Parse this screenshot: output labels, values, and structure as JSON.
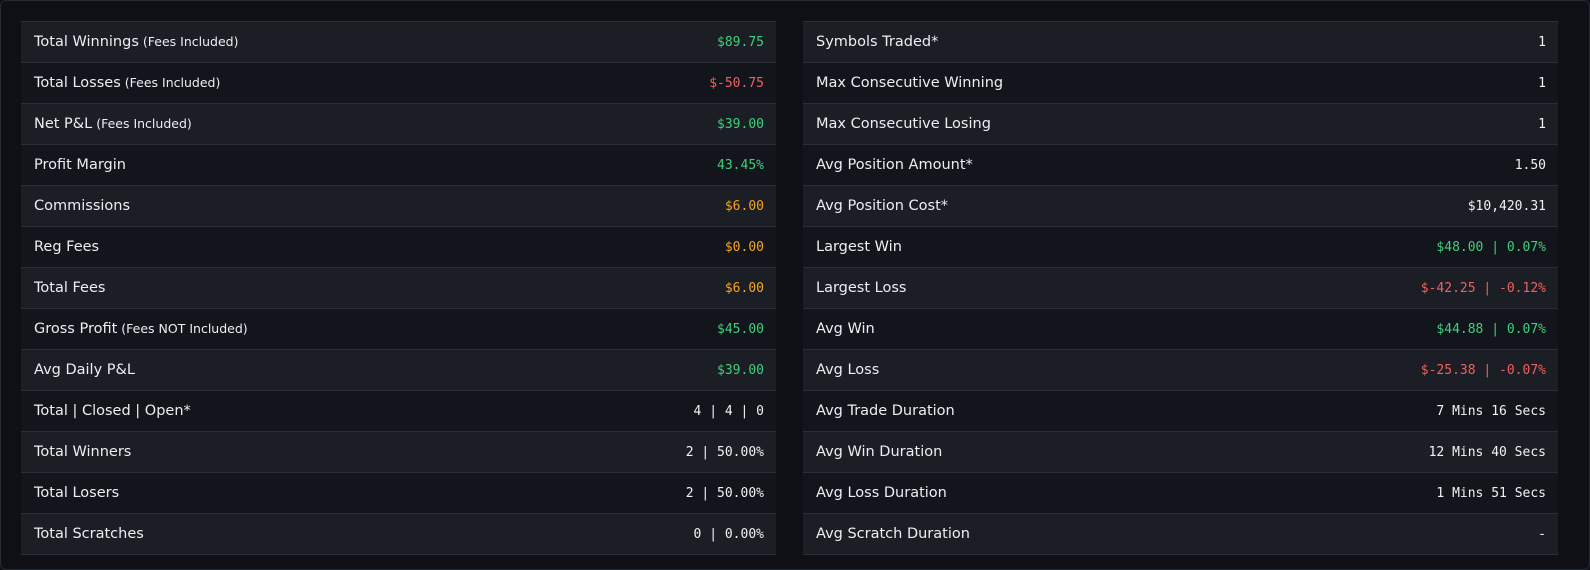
{
  "left": {
    "rows": [
      {
        "label": "Total Winnings",
        "note": "(Fees Included)",
        "value": "$89.75",
        "color": "#3fd07a"
      },
      {
        "label": "Total Losses",
        "note": "(Fees Included)",
        "value": "$-50.75",
        "color": "#f0605f"
      },
      {
        "label": "Net P&L",
        "note": "(Fees Included)",
        "value": "$39.00",
        "color": "#3fd07a"
      },
      {
        "label": "Profit Margin",
        "value": "43.45%",
        "color": "#3fd07a"
      },
      {
        "label": "Commissions",
        "value": "$6.00",
        "color": "#f5a524"
      },
      {
        "label": "Reg Fees",
        "value": "$0.00",
        "color": "#f5a524"
      },
      {
        "label": "Total Fees",
        "value": "$6.00",
        "color": "#f5a524"
      },
      {
        "label": "Gross Profit",
        "note": "(Fees NOT Included)",
        "value": "$45.00",
        "color": "#3fd07a"
      },
      {
        "label": "Avg Daily P&L",
        "value": "$39.00",
        "color": "#3fd07a"
      },
      {
        "label": "Total | Closed | Open*",
        "value": "4 | 4 | 0",
        "color": "#f2f2f2"
      },
      {
        "label": "Total Winners",
        "value": "2 | 50.00%",
        "color": "#f2f2f2"
      },
      {
        "label": "Total Losers",
        "value": "2 | 50.00%",
        "color": "#f2f2f2"
      },
      {
        "label": "Total Scratches",
        "value": "0 | 0.00%",
        "color": "#f2f2f2"
      }
    ]
  },
  "right": {
    "rows": [
      {
        "label": "Symbols Traded*",
        "value": "1",
        "color": "#f2f2f2"
      },
      {
        "label": "Max Consecutive Winning",
        "value": "1",
        "color": "#f2f2f2"
      },
      {
        "label": "Max Consecutive Losing",
        "value": "1",
        "color": "#f2f2f2"
      },
      {
        "label": "Avg Position Amount*",
        "value": "1.50",
        "color": "#f2f2f2"
      },
      {
        "label": "Avg Position Cost*",
        "value": "$10,420.31",
        "color": "#f2f2f2"
      },
      {
        "label": "Largest Win",
        "value": "$48.00 | 0.07%",
        "color": "#3fd07a"
      },
      {
        "label": "Largest Loss",
        "value": "$-42.25 | -0.12%",
        "color": "#f0605f"
      },
      {
        "label": "Avg Win",
        "value": "$44.88 | 0.07%",
        "color": "#3fd07a"
      },
      {
        "label": "Avg Loss",
        "value": "$-25.38 | -0.07%",
        "color": "#f0605f"
      },
      {
        "label": "Avg Trade Duration",
        "value": "7 Mins 16 Secs",
        "color": "#f2f2f2"
      },
      {
        "label": "Avg Win Duration",
        "value": "12 Mins 40 Secs",
        "color": "#f2f2f2"
      },
      {
        "label": "Avg Loss Duration",
        "value": "1 Mins 51 Secs",
        "color": "#f2f2f2"
      },
      {
        "label": "Avg Scratch Duration",
        "value": "-",
        "color": "#f2f2f2"
      }
    ]
  }
}
